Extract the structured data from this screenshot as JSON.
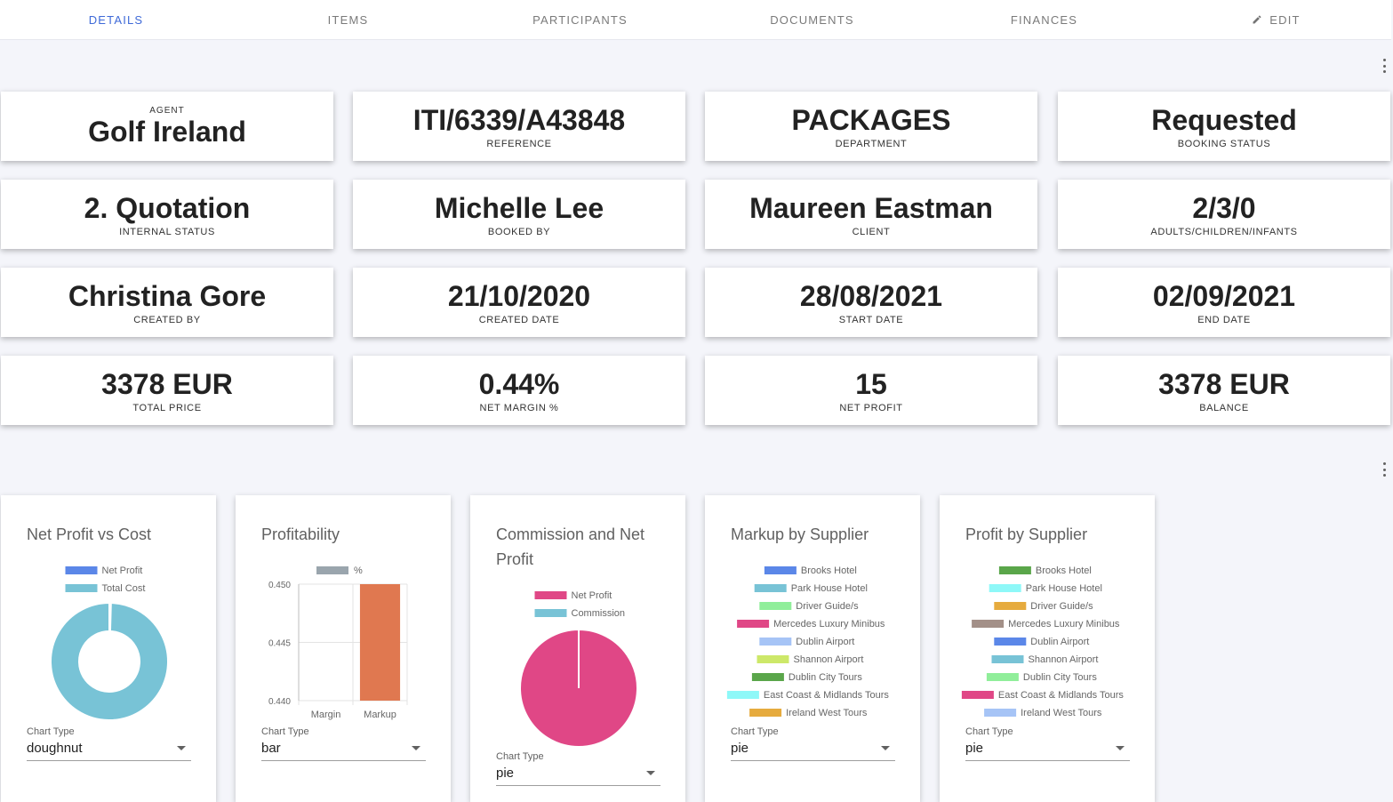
{
  "tabs": [
    {
      "label": "DETAILS",
      "active": true
    },
    {
      "label": "ITEMS"
    },
    {
      "label": "PARTICIPANTS"
    },
    {
      "label": "DOCUMENTS"
    },
    {
      "label": "FINANCES"
    },
    {
      "label": "EDIT",
      "icon": "pencil-icon"
    }
  ],
  "agent": {
    "top_label": "AGENT",
    "value": "Golf Ireland"
  },
  "cards": [
    {
      "value": "ITI/6339/A43848",
      "label": "REFERENCE"
    },
    {
      "value": "PACKAGES",
      "label": "DEPARTMENT"
    },
    {
      "value": "Requested",
      "label": "BOOKING STATUS"
    },
    {
      "value": "2. Quotation",
      "label": "INTERNAL STATUS"
    },
    {
      "value": "Michelle Lee",
      "label": "BOOKED BY"
    },
    {
      "value": "Maureen Eastman",
      "label": "CLIENT"
    },
    {
      "value": "2/3/0",
      "label": "ADULTS/CHILDREN/INFANTS"
    },
    {
      "value": "Christina Gore",
      "label": "CREATED BY"
    },
    {
      "value": "21/10/2020",
      "label": "CREATED DATE"
    },
    {
      "value": "28/08/2021",
      "label": "START DATE"
    },
    {
      "value": "02/09/2021",
      "label": "END DATE"
    },
    {
      "value": "3378 EUR",
      "label": "TOTAL PRICE"
    },
    {
      "value": "0.44%",
      "label": "NET MARGIN %"
    },
    {
      "value": "15",
      "label": "NET PROFIT"
    },
    {
      "value": "3378 EUR",
      "label": "BALANCE"
    }
  ],
  "chart_type_label": "Chart Type",
  "colors": {
    "accent": "#3f6ad8",
    "background": "#f4f5fa"
  },
  "chart_data": [
    {
      "type": "doughnut",
      "title": "Net Profit vs Cost",
      "categories": [
        "Net Profit",
        "Total Cost"
      ],
      "values": [
        15,
        3363
      ],
      "colors": [
        "#5b87e8",
        "#78c3d6"
      ],
      "legend": "top",
      "chart_type_value": "doughnut"
    },
    {
      "type": "bar",
      "title": "Profitability",
      "categories": [
        "Margin",
        "Markup"
      ],
      "series": [
        {
          "name": "%",
          "values": [
            0.44,
            0.45
          ]
        }
      ],
      "colors": [
        "#e07850"
      ],
      "legend_color": "#9aa5ad",
      "ylim": [
        0.44,
        0.45
      ],
      "yticks": [
        "0.450",
        "0.445",
        "0.440"
      ],
      "grid": true,
      "legend": "top",
      "chart_type_value": "bar"
    },
    {
      "type": "pie",
      "title": "Commission and Net Profit",
      "categories": [
        "Net Profit",
        "Commission"
      ],
      "values": [
        15,
        0
      ],
      "colors": [
        "#e04786",
        "#78c3d6"
      ],
      "legend": "top",
      "chart_type_value": "pie"
    },
    {
      "type": "pie",
      "title": "Markup by Supplier",
      "categories": [
        "Brooks Hotel",
        "Park House Hotel",
        "Driver Guide/s",
        "Mercedes Luxury Minibus",
        "Dublin Airport",
        "Shannon Airport",
        "Dublin City Tours",
        "East Coast & Midlands Tours",
        "Ireland West Tours"
      ],
      "colors": [
        "#5b87e8",
        "#78c3d6",
        "#90ee9a",
        "#e04786",
        "#a6c4f6",
        "#cde869",
        "#5aa64a",
        "#8ef8f8",
        "#e6ab3e"
      ],
      "legend": "top",
      "chart_type_value": "pie"
    },
    {
      "type": "pie",
      "title": "Profit by Supplier",
      "categories": [
        "Brooks Hotel",
        "Park House Hotel",
        "Driver Guide/s",
        "Mercedes Luxury Minibus",
        "Dublin Airport",
        "Shannon Airport",
        "Dublin City Tours",
        "East Coast & Midlands Tours",
        "Ireland West Tours"
      ],
      "colors": [
        "#5aa64a",
        "#8ef8f8",
        "#e6ab3e",
        "#a39088",
        "#5b87e8",
        "#78c3d6",
        "#90ee9a",
        "#e04786",
        "#a6c4f6"
      ],
      "legend": "top",
      "chart_type_value": "pie"
    }
  ]
}
